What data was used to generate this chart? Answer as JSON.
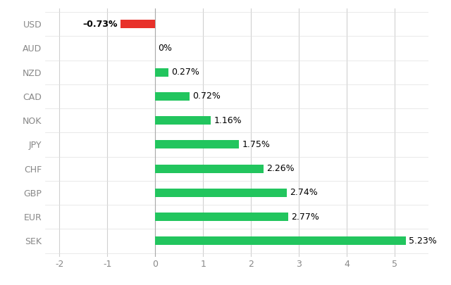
{
  "categories": [
    "USD",
    "AUD",
    "NZD",
    "CAD",
    "NOK",
    "JPY",
    "CHF",
    "GBP",
    "EUR",
    "SEK"
  ],
  "values": [
    -0.73,
    0.0,
    0.27,
    0.72,
    1.16,
    1.75,
    2.26,
    2.74,
    2.77,
    5.23
  ],
  "labels": [
    "–0.73%",
    "0%",
    "0.27%",
    "0.72%",
    "1.16%",
    "1.75%",
    "2.26%",
    "2.74%",
    "2.77%",
    "5.23%"
  ],
  "label_bold": [
    true,
    false,
    false,
    false,
    false,
    false,
    false,
    false,
    false,
    false
  ],
  "bar_colors": [
    "#e8312a",
    "#22c55e",
    "#22c55e",
    "#22c55e",
    "#22c55e",
    "#22c55e",
    "#22c55e",
    "#22c55e",
    "#22c55e",
    "#22c55e"
  ],
  "xlim": [
    -2.3,
    5.7
  ],
  "xticks": [
    -2,
    -1,
    0,
    1,
    2,
    3,
    4,
    5
  ],
  "background_color": "#ffffff",
  "grid_color": "#d0d0d0",
  "bar_height": 0.35,
  "label_fontsize": 9,
  "tick_fontsize": 9,
  "label_color": "#000000",
  "ytick_color": "#888888",
  "xtick_color": "#888888"
}
